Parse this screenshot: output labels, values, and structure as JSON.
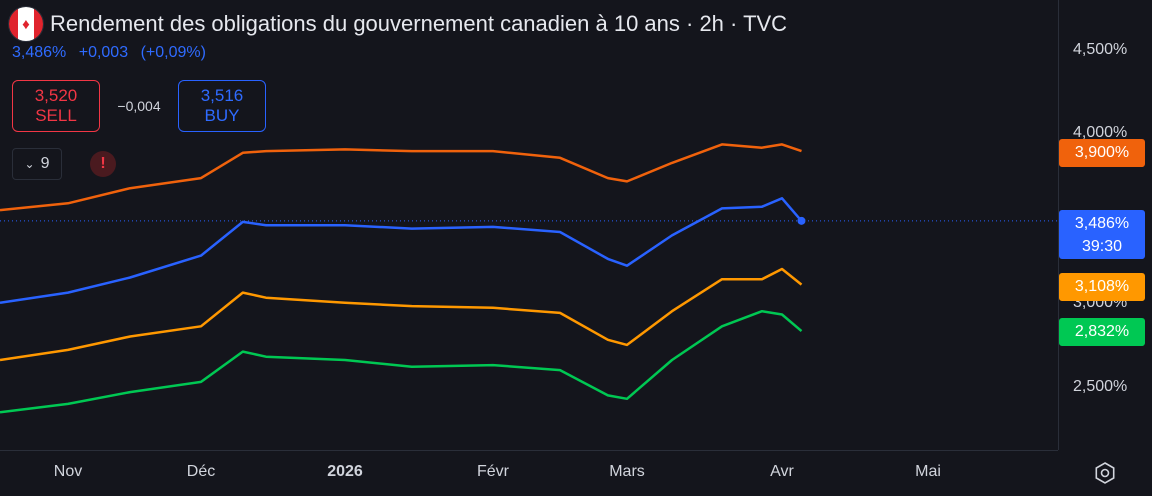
{
  "header": {
    "flag": "canada-flag-icon",
    "title": "Rendement des obligations du gouvernement canadien à 10 ans · 2h · TVC",
    "last": "3,486%",
    "change": "+0,003",
    "change_pct": "(+0,09%)"
  },
  "trade": {
    "sell_price": "3,520",
    "sell_label": "SELL",
    "spread": "−0,004",
    "buy_price": "3,516",
    "buy_label": "BUY"
  },
  "tools": {
    "indicator_count": "9",
    "alert_symbol": "!"
  },
  "price_axis": {
    "ticks": [
      "4,500%",
      "4,000%",
      "3,000%",
      "2,500%"
    ],
    "tags": [
      {
        "value": "3,900%",
        "color": "#f0620c"
      },
      {
        "value": "3,486%",
        "countdown": "39:30",
        "color": "#2962ff"
      },
      {
        "value": "3,108%",
        "color": "#ff9800"
      },
      {
        "value": "2,832%",
        "color": "#00c853"
      }
    ]
  },
  "time_axis": {
    "labels": [
      "Nov",
      "Déc",
      "2026",
      "Févr",
      "Mars",
      "Avr",
      "Mai"
    ]
  },
  "chart_data": {
    "type": "line",
    "x": [
      "2025-10-20",
      "2025-11-01",
      "2025-11-15",
      "2025-12-01",
      "2025-12-10",
      "2025-12-15",
      "2026-01-01",
      "2026-01-15",
      "2026-02-01",
      "2026-02-15",
      "2026-02-25",
      "2026-03-01",
      "2026-03-10",
      "2026-03-20",
      "2026-03-28",
      "2026-04-01",
      "2026-04-05"
    ],
    "ylim": [
      2.2,
      4.7
    ],
    "series": [
      {
        "color": "#f0620c",
        "values": [
          3.55,
          3.59,
          3.68,
          3.74,
          3.89,
          3.9,
          3.91,
          3.9,
          3.9,
          3.86,
          3.74,
          3.72,
          3.83,
          3.94,
          3.92,
          3.94,
          3.9
        ]
      },
      {
        "color": "#2962ff",
        "values": [
          3.0,
          3.06,
          3.15,
          3.28,
          3.48,
          3.46,
          3.46,
          3.44,
          3.45,
          3.42,
          3.26,
          3.22,
          3.4,
          3.56,
          3.57,
          3.62,
          3.486
        ]
      },
      {
        "color": "#ff9800",
        "values": [
          2.66,
          2.72,
          2.8,
          2.86,
          3.06,
          3.03,
          3.0,
          2.98,
          2.97,
          2.94,
          2.78,
          2.75,
          2.95,
          3.14,
          3.14,
          3.2,
          3.108
        ]
      },
      {
        "color": "#00c853",
        "values": [
          2.35,
          2.4,
          2.47,
          2.53,
          2.71,
          2.68,
          2.66,
          2.62,
          2.63,
          2.6,
          2.45,
          2.43,
          2.66,
          2.86,
          2.95,
          2.93,
          2.832
        ]
      }
    ]
  }
}
